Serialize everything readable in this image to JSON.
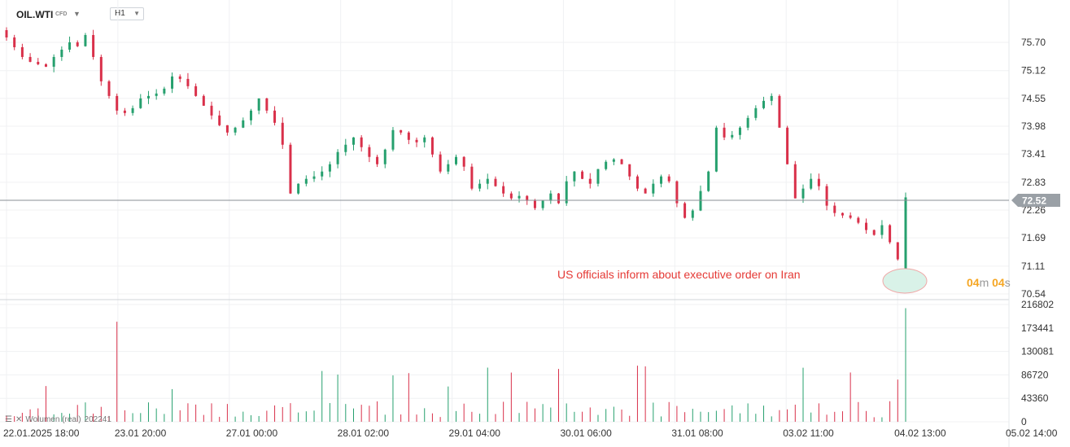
{
  "header": {
    "symbol": "OIL.WTI",
    "symbol_badge": "CFD",
    "timeframe": "H1"
  },
  "price_axis": {
    "labels": [
      "75.70",
      "75.12",
      "74.55",
      "73.98",
      "73.41",
      "72.83",
      "72.26",
      "71.69",
      "71.11",
      "70.54"
    ],
    "current_price": "72.52"
  },
  "volume_axis": {
    "labels": [
      "216802",
      "173441",
      "130081",
      "86720",
      "43360",
      "0"
    ]
  },
  "time_axis": {
    "labels": [
      "22.01.2025  18:00",
      "23.01  20:00",
      "27.01  00:00",
      "28.01  02:00",
      "29.01  04:00",
      "30.01  06:00",
      "31.01  08:00",
      "03.02  11:00",
      "04.02  13:00",
      "05.02  14:00"
    ]
  },
  "annotation": {
    "text": "US officials inform about executive order on Iran"
  },
  "countdown": {
    "minutes": "04",
    "m_unit": "m",
    "seconds": "04",
    "s_unit": "s"
  },
  "volume_legend": {
    "label": "Wolumen (real)",
    "value": "202241"
  },
  "colors": {
    "up": "#26a06e",
    "down": "#d9304a",
    "price_badge": "#9aa0a6",
    "annotation": "#e53935",
    "timer": "#f5a623"
  },
  "chart_data": {
    "type": "candlestick",
    "instrument": "OIL.WTI",
    "interval": "H1",
    "ylim": [
      70.54,
      75.7
    ],
    "x_labels": [
      "22.01.2025 18:00",
      "23.01 20:00",
      "27.01 00:00",
      "28.01 02:00",
      "29.01 04:00",
      "30.01 06:00",
      "31.01 08:00",
      "03.02 11:00",
      "04.02 13:00",
      "05.02 14:00"
    ],
    "last_price": 72.52,
    "close_path": [
      75.8,
      75.6,
      75.4,
      75.3,
      75.25,
      75.2,
      75.4,
      75.55,
      75.7,
      75.62,
      75.85,
      75.4,
      74.9,
      74.6,
      74.3,
      74.25,
      74.35,
      74.55,
      74.6,
      74.65,
      74.75,
      75.0,
      74.95,
      74.8,
      74.6,
      74.4,
      74.2,
      74.0,
      73.85,
      73.95,
      74.1,
      74.3,
      74.55,
      74.3,
      74.05,
      73.6,
      72.6,
      72.8,
      72.9,
      72.95,
      73.05,
      73.2,
      73.45,
      73.6,
      73.75,
      73.55,
      73.35,
      73.2,
      73.5,
      73.9,
      73.85,
      73.7,
      73.65,
      73.75,
      73.4,
      73.05,
      73.2,
      73.35,
      73.15,
      72.7,
      72.8,
      72.9,
      72.75,
      72.6,
      72.5,
      72.55,
      72.45,
      72.3,
      72.45,
      72.6,
      72.4,
      72.85,
      73.05,
      72.9,
      72.8,
      73.1,
      73.25,
      73.3,
      73.2,
      72.95,
      72.7,
      72.6,
      72.8,
      72.95,
      72.85,
      72.4,
      72.1,
      72.25,
      72.65,
      73.05,
      73.95,
      73.75,
      73.8,
      73.95,
      74.15,
      74.35,
      74.5,
      74.6,
      73.95,
      73.2,
      72.5,
      72.7,
      72.9,
      72.75,
      72.35,
      72.2,
      72.15,
      72.1,
      72.0,
      71.85,
      71.75,
      71.95,
      71.6,
      71.25,
      72.52
    ],
    "volume_max_label": 216802,
    "annotation_text": "US officials inform about executive order on Iran"
  }
}
